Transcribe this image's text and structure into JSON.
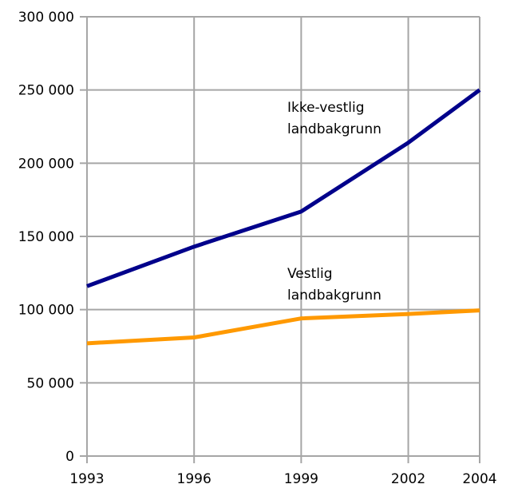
{
  "chart_data": {
    "type": "line",
    "title": "",
    "xlabel": "",
    "ylabel": "",
    "x": [
      1993,
      1996,
      1999,
      2002,
      2004
    ],
    "x_tick_labels": [
      "1993",
      "1996",
      "1999",
      "2002",
      "2004"
    ],
    "y_tick_labels": [
      "0",
      "50 000",
      "100 000",
      "150 000",
      "200 000",
      "250 000",
      "300 000"
    ],
    "y_ticks": [
      0,
      50000,
      100000,
      150000,
      200000,
      250000,
      300000
    ],
    "ylim": [
      0,
      300000
    ],
    "grid": true,
    "legend": "none (inline labels)",
    "series": [
      {
        "label_lines": [
          "Ikke-vestlig",
          "landbakgrunn"
        ],
        "color": "#00008b",
        "values": [
          116000,
          143000,
          167000,
          214000,
          250000
        ]
      },
      {
        "label_lines": [
          "Vestlig",
          "landbakgrunn"
        ],
        "color": "#ff9900",
        "values": [
          77000,
          81000,
          94000,
          97000,
          99500
        ]
      }
    ]
  }
}
